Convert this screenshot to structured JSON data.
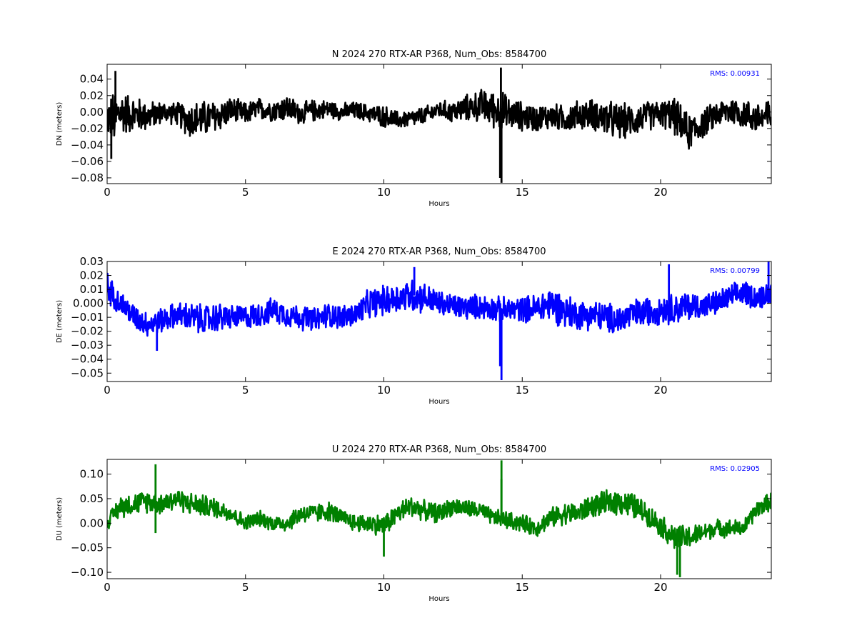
{
  "chart_data": [
    {
      "type": "line",
      "title": "N 2024 270 RTX-AR  P368, Num_Obs: 8584700",
      "xlabel": "Hours",
      "ylabel": "DN (meters)",
      "xlim": [
        0,
        24
      ],
      "ylim": [
        -0.087,
        0.058
      ],
      "xticks": [
        0,
        5,
        10,
        15,
        20
      ],
      "xtick_labels": [
        "0",
        "5",
        "10",
        "15",
        "20"
      ],
      "yticks": [
        -0.08,
        -0.06,
        -0.04,
        -0.02,
        0.0,
        0.02,
        0.04
      ],
      "ytick_labels": [
        "−0.08",
        "−0.06",
        "−0.04",
        "−0.02",
        "0.00",
        "0.02",
        "0.04"
      ],
      "annotation": "RMS:  0.00931",
      "color": "#000000",
      "grid": false,
      "series": [
        {
          "x": [
            0,
            0.25,
            0.5,
            1,
            1.5,
            2,
            2.5,
            3,
            3.5,
            4,
            4.5,
            5,
            5.5,
            6,
            6.5,
            7,
            7.5,
            8,
            8.5,
            9,
            9.5,
            10,
            10.5,
            11,
            11.5,
            12,
            12.5,
            13,
            13.5,
            14,
            14.25,
            14.5,
            15,
            15.5,
            16,
            16.5,
            17,
            17.5,
            18,
            18.5,
            19,
            19.5,
            20,
            20.5,
            21,
            21.5,
            22,
            22.5,
            23,
            23.5,
            24
          ],
          "y": [
            -0.005,
            -0.01,
            0.0,
            -0.003,
            -0.005,
            0.0,
            -0.002,
            -0.01,
            -0.008,
            -0.005,
            0.002,
            -0.002,
            0.004,
            0.002,
            0.005,
            -0.002,
            0.002,
            0.004,
            0.0,
            0.002,
            -0.002,
            -0.005,
            -0.01,
            -0.008,
            -0.004,
            0.003,
            0.0,
            0.005,
            0.008,
            0.003,
            0.0,
            -0.002,
            -0.005,
            -0.008,
            -0.005,
            -0.008,
            -0.004,
            -0.002,
            -0.008,
            -0.012,
            -0.01,
            -0.005,
            -0.002,
            -0.005,
            -0.025,
            -0.015,
            -0.003,
            0.002,
            -0.002,
            -0.008,
            -0.005
          ],
          "envelope": [
            0.025,
            0.04,
            0.03,
            0.025,
            0.02,
            0.015,
            0.015,
            0.025,
            0.025,
            0.022,
            0.018,
            0.015,
            0.015,
            0.015,
            0.018,
            0.015,
            0.015,
            0.012,
            0.012,
            0.012,
            0.012,
            0.015,
            0.012,
            0.012,
            0.012,
            0.012,
            0.015,
            0.018,
            0.022,
            0.025,
            0.03,
            0.022,
            0.02,
            0.018,
            0.018,
            0.018,
            0.02,
            0.02,
            0.025,
            0.025,
            0.022,
            0.02,
            0.018,
            0.025,
            0.025,
            0.02,
            0.018,
            0.02,
            0.02,
            0.022,
            0.028
          ],
          "spikes": [
            [
              0.3,
              0.05
            ],
            [
              0.15,
              -0.057
            ],
            [
              14.23,
              0.054
            ],
            [
              14.25,
              -0.086
            ],
            [
              14.2,
              -0.08
            ]
          ]
        }
      ]
    },
    {
      "type": "line",
      "title": "E 2024 270 RTX-AR  P368, Num_Obs: 8584700",
      "xlabel": "Hours",
      "ylabel": "DE (meters)",
      "xlim": [
        0,
        24
      ],
      "ylim": [
        -0.056,
        0.03
      ],
      "xticks": [
        0,
        5,
        10,
        15,
        20
      ],
      "xtick_labels": [
        "0",
        "5",
        "10",
        "15",
        "20"
      ],
      "yticks": [
        -0.05,
        -0.04,
        -0.03,
        -0.02,
        -0.01,
        0.0,
        0.01,
        0.02,
        0.03
      ],
      "ytick_labels": [
        "−0.05",
        "−0.04",
        "−0.03",
        "−0.02",
        "−0.01",
        "0.000",
        "0.01",
        "0.02",
        "0.03"
      ],
      "annotation": "RMS:  0.00799",
      "color": "#0000ff",
      "grid": false,
      "series": [
        {
          "x": [
            0,
            0.25,
            0.5,
            1,
            1.5,
            2,
            2.5,
            3,
            3.5,
            4,
            4.5,
            5,
            5.5,
            6,
            6.5,
            7,
            7.5,
            8,
            8.5,
            9,
            9.5,
            10,
            10.5,
            11,
            11.5,
            12,
            12.5,
            13,
            13.5,
            14,
            14.25,
            14.5,
            15,
            15.5,
            16,
            16.5,
            17,
            17.5,
            18,
            18.5,
            19,
            19.5,
            20,
            20.5,
            21,
            21.5,
            22,
            22.5,
            23,
            23.5,
            24
          ],
          "y": [
            0.012,
            0.005,
            0.0,
            -0.01,
            -0.015,
            -0.012,
            -0.008,
            -0.01,
            -0.012,
            -0.01,
            -0.01,
            -0.01,
            -0.008,
            -0.005,
            -0.008,
            -0.01,
            -0.012,
            -0.008,
            -0.01,
            -0.008,
            0.0,
            0.002,
            0.004,
            0.006,
            0.004,
            0.0,
            -0.002,
            -0.003,
            -0.002,
            -0.004,
            -0.006,
            -0.005,
            -0.004,
            -0.004,
            0.0,
            -0.005,
            -0.008,
            -0.008,
            -0.01,
            -0.012,
            -0.008,
            -0.006,
            -0.004,
            -0.004,
            -0.002,
            -0.002,
            0.0,
            0.004,
            0.008,
            0.004,
            0.008
          ],
          "envelope": [
            0.012,
            0.01,
            0.01,
            0.01,
            0.01,
            0.01,
            0.01,
            0.012,
            0.012,
            0.012,
            0.01,
            0.01,
            0.01,
            0.01,
            0.01,
            0.01,
            0.01,
            0.01,
            0.01,
            0.01,
            0.012,
            0.012,
            0.012,
            0.014,
            0.012,
            0.01,
            0.01,
            0.01,
            0.01,
            0.01,
            0.012,
            0.01,
            0.01,
            0.012,
            0.014,
            0.014,
            0.012,
            0.012,
            0.012,
            0.012,
            0.012,
            0.012,
            0.012,
            0.012,
            0.012,
            0.01,
            0.01,
            0.01,
            0.01,
            0.01,
            0.01
          ],
          "spikes": [
            [
              1.8,
              -0.034
            ],
            [
              14.25,
              -0.055
            ],
            [
              14.2,
              -0.045
            ],
            [
              20.3,
              0.028
            ],
            [
              23.9,
              0.03
            ],
            [
              11.1,
              0.026
            ]
          ]
        }
      ]
    },
    {
      "type": "line",
      "title": "U 2024 270 RTX-AR  P368, Num_Obs: 8584700",
      "xlabel": "Hours",
      "ylabel": "DU (meters)",
      "xlim": [
        0,
        24
      ],
      "ylim": [
        -0.113,
        0.13
      ],
      "xticks": [
        0,
        5,
        10,
        15,
        20
      ],
      "xtick_labels": [
        "0",
        "5",
        "10",
        "15",
        "20"
      ],
      "yticks": [
        -0.1,
        -0.05,
        0.0,
        0.05,
        0.1
      ],
      "ytick_labels": [
        "−0.10",
        "−0.05",
        "0.00",
        "0.05",
        "0.10"
      ],
      "annotation": "RMS:  0.02905",
      "color": "#008000",
      "grid": false,
      "series": [
        {
          "x": [
            0,
            0.25,
            0.5,
            1,
            1.5,
            2,
            2.5,
            3,
            3.5,
            4,
            4.5,
            5,
            5.5,
            6,
            6.5,
            7,
            7.5,
            8,
            8.5,
            9,
            9.5,
            10,
            10.5,
            11,
            11.5,
            12,
            12.5,
            13,
            13.5,
            14,
            14.25,
            14.5,
            15,
            15.5,
            16,
            16.5,
            17,
            17.5,
            18,
            18.5,
            19,
            19.5,
            20,
            20.5,
            21,
            21.5,
            22,
            22.5,
            23,
            23.5,
            24
          ],
          "y": [
            0.0,
            0.02,
            0.035,
            0.04,
            0.045,
            0.04,
            0.05,
            0.04,
            0.035,
            0.03,
            0.02,
            0.0,
            0.01,
            0.0,
            0.0,
            0.02,
            0.02,
            0.025,
            0.01,
            0.0,
            0.0,
            -0.005,
            0.02,
            0.035,
            0.025,
            0.02,
            0.035,
            0.03,
            0.025,
            0.01,
            0.01,
            0.005,
            0.0,
            -0.01,
            0.01,
            0.02,
            0.02,
            0.035,
            0.04,
            0.045,
            0.035,
            0.02,
            -0.005,
            -0.03,
            -0.03,
            -0.02,
            -0.01,
            -0.01,
            -0.01,
            0.03,
            0.045
          ],
          "envelope": [
            0.015,
            0.02,
            0.025,
            0.025,
            0.025,
            0.025,
            0.025,
            0.025,
            0.025,
            0.022,
            0.02,
            0.018,
            0.018,
            0.018,
            0.02,
            0.022,
            0.022,
            0.022,
            0.02,
            0.02,
            0.022,
            0.025,
            0.025,
            0.025,
            0.022,
            0.022,
            0.02,
            0.02,
            0.02,
            0.018,
            0.02,
            0.02,
            0.02,
            0.02,
            0.022,
            0.025,
            0.025,
            0.025,
            0.028,
            0.03,
            0.03,
            0.025,
            0.025,
            0.03,
            0.028,
            0.022,
            0.02,
            0.02,
            0.018,
            0.02,
            0.02
          ],
          "spikes": [
            [
              1.75,
              0.12
            ],
            [
              1.75,
              -0.02
            ],
            [
              14.25,
              0.128
            ],
            [
              14.25,
              0.09
            ],
            [
              20.7,
              -0.11
            ],
            [
              20.6,
              -0.105
            ],
            [
              10.0,
              -0.068
            ]
          ]
        }
      ]
    }
  ]
}
